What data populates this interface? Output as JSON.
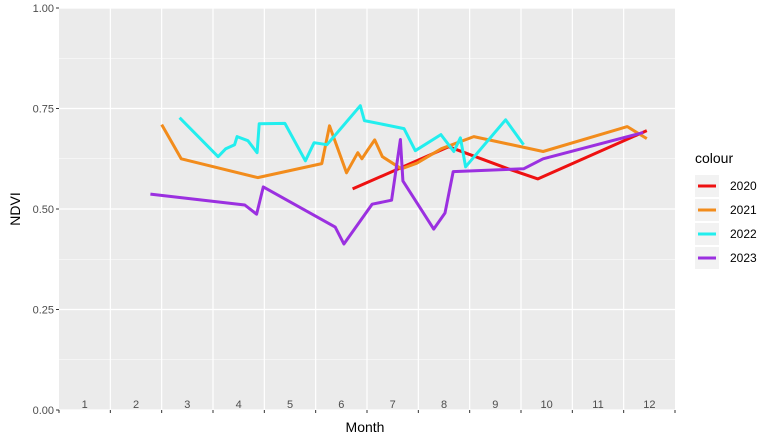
{
  "chart_data": {
    "type": "line",
    "xlabel": "Month",
    "ylabel": "NDVI",
    "ylim": [
      0,
      1
    ],
    "xlim": [
      0.5,
      12.5
    ],
    "yticks": [
      0.0,
      0.25,
      0.5,
      0.75,
      1.0
    ],
    "ytick_labels": [
      "0.00",
      "0.25",
      "0.50",
      "0.75",
      "1.00"
    ],
    "xtick_labels": [
      "1",
      "2",
      "3",
      "4",
      "5",
      "6",
      "7",
      "8",
      "9",
      "10",
      "11",
      "12"
    ],
    "grid": true,
    "legend": {
      "title": "colour",
      "position": "right"
    },
    "series": [
      {
        "name": "2020",
        "color": "#ee1111",
        "x": [
          6.22,
          7.47,
          8.09,
          9.25,
          9.83,
          11.95
        ],
        "y": [
          0.55,
          0.62,
          0.655,
          0.6,
          0.575,
          0.695
        ]
      },
      {
        "name": "2021",
        "color": "#f28c1c",
        "x": [
          2.5,
          2.88,
          4.37,
          5.62,
          5.77,
          6.1,
          6.32,
          6.4,
          6.5,
          6.65,
          6.8,
          7.17,
          7.47,
          7.95,
          8.58,
          9.93,
          11.57,
          11.95
        ],
        "y": [
          0.71,
          0.625,
          0.578,
          0.613,
          0.707,
          0.59,
          0.64,
          0.625,
          0.644,
          0.672,
          0.63,
          0.6,
          0.614,
          0.65,
          0.68,
          0.643,
          0.705,
          0.675
        ]
      },
      {
        "name": "2022",
        "color": "#22eeee",
        "x": [
          2.85,
          3.6,
          3.75,
          3.92,
          3.97,
          4.18,
          4.36,
          4.4,
          4.9,
          5.3,
          5.47,
          5.72,
          6.37,
          6.45,
          7.22,
          7.44,
          7.94,
          8.19,
          8.32,
          8.42,
          9.2,
          9.55
        ],
        "y": [
          0.727,
          0.63,
          0.65,
          0.66,
          0.68,
          0.67,
          0.64,
          0.712,
          0.713,
          0.62,
          0.665,
          0.66,
          0.757,
          0.72,
          0.7,
          0.645,
          0.685,
          0.643,
          0.677,
          0.605,
          0.722,
          0.66
        ]
      },
      {
        "name": "2023",
        "color": "#9b30e0",
        "x": [
          2.28,
          4.12,
          4.35,
          4.48,
          5.88,
          6.05,
          6.6,
          6.98,
          7.15,
          7.2,
          7.8,
          8.02,
          8.18,
          9.55,
          9.93,
          11.88
        ],
        "y": [
          0.537,
          0.51,
          0.487,
          0.555,
          0.455,
          0.413,
          0.512,
          0.522,
          0.673,
          0.57,
          0.45,
          0.49,
          0.593,
          0.6,
          0.625,
          0.69
        ]
      }
    ]
  }
}
